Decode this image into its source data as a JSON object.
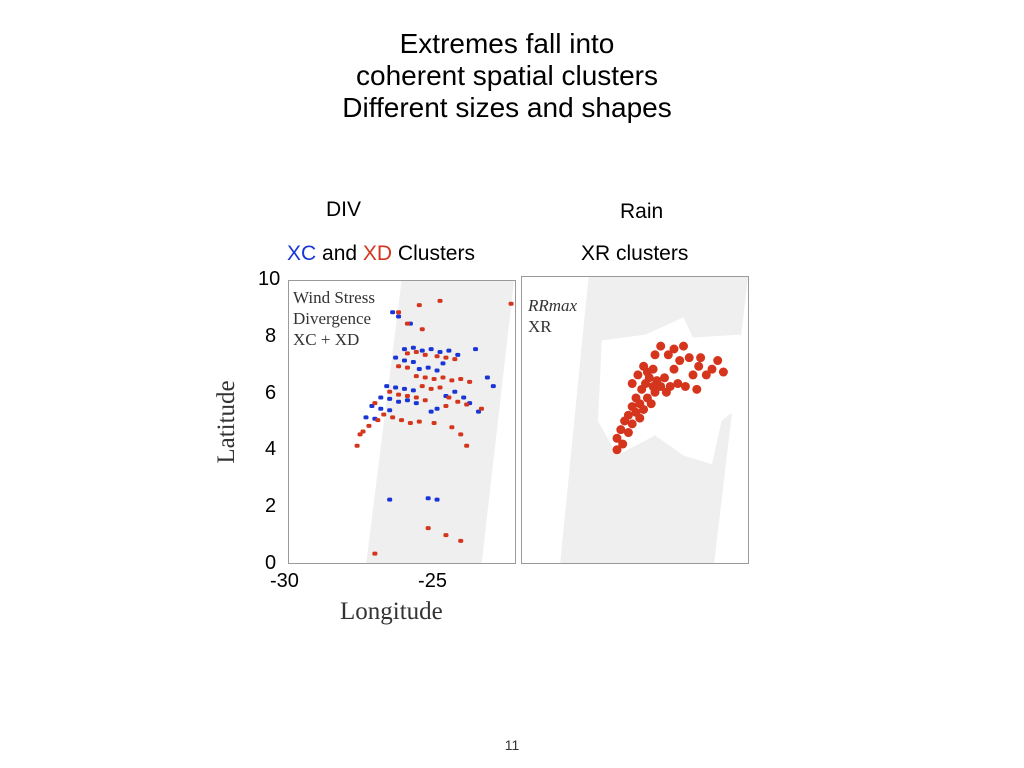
{
  "slide": {
    "title_lines": [
      "Extremes fall into",
      "coherent spatial clusters",
      "Different sizes and shapes"
    ],
    "page_number": "11"
  },
  "labels": {
    "div": "DIV",
    "rain": "Rain",
    "xc": "XC",
    "and": " and ",
    "xd": "XD",
    "clusters": " Clusters",
    "xr_clusters": "XR clusters"
  },
  "colors": {
    "xc": "#1a35d6",
    "xd": "#d4351c",
    "swath": "#efefef"
  },
  "chart_data": [
    {
      "type": "scatter",
      "xlabel": "Longitude",
      "ylabel": "Latitude",
      "xlim": [
        -30,
        -22.3
      ],
      "ylim": [
        0,
        10
      ],
      "xticks": [
        "-30",
        "-25"
      ],
      "yticks": [
        "0",
        "2",
        "4",
        "6",
        "8",
        "10"
      ],
      "legend": [
        "Wind Stress",
        "Divergence",
        "XC + XD"
      ],
      "series": [
        {
          "name": "XC",
          "color": "#1a35d6",
          "points": [
            [
              -26.1,
              7.6
            ],
            [
              -25.8,
              7.65
            ],
            [
              -25.5,
              7.55
            ],
            [
              -25.2,
              7.6
            ],
            [
              -24.9,
              7.5
            ],
            [
              -24.6,
              7.55
            ],
            [
              -24.3,
              7.4
            ],
            [
              -26.4,
              7.3
            ],
            [
              -26.1,
              7.2
            ],
            [
              -25.8,
              7.15
            ],
            [
              -25.6,
              6.9
            ],
            [
              -25.3,
              6.95
            ],
            [
              -25.0,
              6.85
            ],
            [
              -26.7,
              6.3
            ],
            [
              -26.4,
              6.25
            ],
            [
              -26.1,
              6.2
            ],
            [
              -25.8,
              6.15
            ],
            [
              -26.9,
              5.9
            ],
            [
              -26.6,
              5.85
            ],
            [
              -26.3,
              5.75
            ],
            [
              -26.0,
              5.8
            ],
            [
              -25.7,
              5.7
            ],
            [
              -27.2,
              5.6
            ],
            [
              -26.9,
              5.5
            ],
            [
              -26.6,
              5.45
            ],
            [
              -25.2,
              5.4
            ],
            [
              -25.0,
              5.5
            ],
            [
              -24.7,
              5.95
            ],
            [
              -24.4,
              6.1
            ],
            [
              -24.1,
              5.9
            ],
            [
              -27.4,
              5.2
            ],
            [
              -27.1,
              5.15
            ],
            [
              -23.3,
              6.6
            ],
            [
              -23.1,
              6.3
            ],
            [
              -23.9,
              5.7
            ],
            [
              -26.5,
              8.9
            ],
            [
              -26.3,
              8.75
            ],
            [
              -23.6,
              5.4
            ],
            [
              -26.6,
              2.3
            ],
            [
              -25.3,
              2.35
            ],
            [
              -25.0,
              2.3
            ],
            [
              -23.7,
              7.6
            ],
            [
              -25.9,
              8.5
            ],
            [
              -24.8,
              7.1
            ]
          ]
        },
        {
          "name": "XD",
          "color": "#d4351c",
          "points": [
            [
              -26.0,
              7.45
            ],
            [
              -25.7,
              7.5
            ],
            [
              -25.4,
              7.4
            ],
            [
              -25.0,
              7.35
            ],
            [
              -24.7,
              7.3
            ],
            [
              -24.4,
              7.25
            ],
            [
              -26.3,
              7.0
            ],
            [
              -26.0,
              6.95
            ],
            [
              -25.7,
              6.65
            ],
            [
              -25.4,
              6.6
            ],
            [
              -25.1,
              6.55
            ],
            [
              -24.8,
              6.6
            ],
            [
              -24.5,
              6.5
            ],
            [
              -24.2,
              6.55
            ],
            [
              -23.9,
              6.45
            ],
            [
              -26.6,
              6.1
            ],
            [
              -26.3,
              6.0
            ],
            [
              -26.0,
              5.95
            ],
            [
              -25.7,
              5.9
            ],
            [
              -25.4,
              5.8
            ],
            [
              -27.0,
              5.1
            ],
            [
              -26.8,
              5.3
            ],
            [
              -26.5,
              5.2
            ],
            [
              -26.2,
              5.1
            ],
            [
              -25.9,
              5.0
            ],
            [
              -25.6,
              5.05
            ],
            [
              -27.3,
              4.9
            ],
            [
              -27.6,
              4.6
            ],
            [
              -27.7,
              4.2
            ],
            [
              -27.5,
              4.7
            ],
            [
              -25.5,
              6.3
            ],
            [
              -25.2,
              6.2
            ],
            [
              -24.9,
              6.25
            ],
            [
              -24.6,
              5.9
            ],
            [
              -24.3,
              5.75
            ],
            [
              -24.0,
              5.65
            ],
            [
              -24.5,
              4.85
            ],
            [
              -24.2,
              4.6
            ],
            [
              -26.3,
              8.9
            ],
            [
              -25.6,
              9.15
            ],
            [
              -24.9,
              9.3
            ],
            [
              -26.0,
              8.5
            ],
            [
              -25.5,
              8.3
            ],
            [
              -27.1,
              5.7
            ],
            [
              -25.3,
              1.3
            ],
            [
              -24.7,
              1.05
            ],
            [
              -27.1,
              0.4
            ],
            [
              -24.2,
              0.85
            ],
            [
              -22.5,
              9.2
            ],
            [
              -24.0,
              4.2
            ],
            [
              -25.1,
              5.0
            ],
            [
              -24.7,
              5.6
            ],
            [
              -23.5,
              5.5
            ]
          ]
        }
      ]
    },
    {
      "type": "scatter",
      "legend": [
        "RRmax",
        "XR"
      ],
      "series": [
        {
          "name": "XR",
          "color": "#d4351c",
          "points": [
            [
              5.0,
              4.0
            ],
            [
              5.0,
              4.4
            ],
            [
              5.2,
              4.7
            ],
            [
              5.3,
              4.2
            ],
            [
              5.4,
              5.0
            ],
            [
              5.6,
              4.6
            ],
            [
              5.6,
              5.2
            ],
            [
              5.8,
              4.9
            ],
            [
              5.8,
              5.5
            ],
            [
              6.0,
              5.3
            ],
            [
              6.0,
              5.8
            ],
            [
              6.2,
              5.1
            ],
            [
              6.2,
              5.6
            ],
            [
              6.3,
              6.1
            ],
            [
              6.4,
              5.4
            ],
            [
              6.5,
              6.3
            ],
            [
              6.6,
              5.8
            ],
            [
              6.7,
              6.5
            ],
            [
              6.8,
              5.6
            ],
            [
              6.9,
              6.2
            ],
            [
              7.0,
              6.0
            ],
            [
              6.6,
              6.7
            ],
            [
              6.4,
              6.9
            ],
            [
              6.9,
              6.8
            ],
            [
              7.1,
              6.4
            ],
            [
              7.3,
              6.2
            ],
            [
              7.5,
              6.5
            ],
            [
              7.6,
              6.0
            ],
            [
              7.8,
              6.2
            ],
            [
              8.0,
              6.8
            ],
            [
              8.2,
              6.3
            ],
            [
              8.0,
              7.5
            ],
            [
              8.3,
              7.1
            ],
            [
              8.5,
              7.6
            ],
            [
              8.8,
              7.2
            ],
            [
              9.0,
              6.6
            ],
            [
              9.3,
              6.9
            ],
            [
              9.4,
              7.2
            ],
            [
              9.7,
              6.6
            ],
            [
              10.0,
              6.8
            ],
            [
              10.3,
              7.1
            ],
            [
              10.6,
              6.7
            ],
            [
              9.2,
              6.1
            ],
            [
              8.6,
              6.2
            ],
            [
              7.3,
              7.6
            ],
            [
              7.0,
              7.3
            ],
            [
              7.7,
              7.3
            ],
            [
              6.1,
              6.6
            ],
            [
              5.8,
              6.3
            ]
          ]
        }
      ]
    }
  ]
}
